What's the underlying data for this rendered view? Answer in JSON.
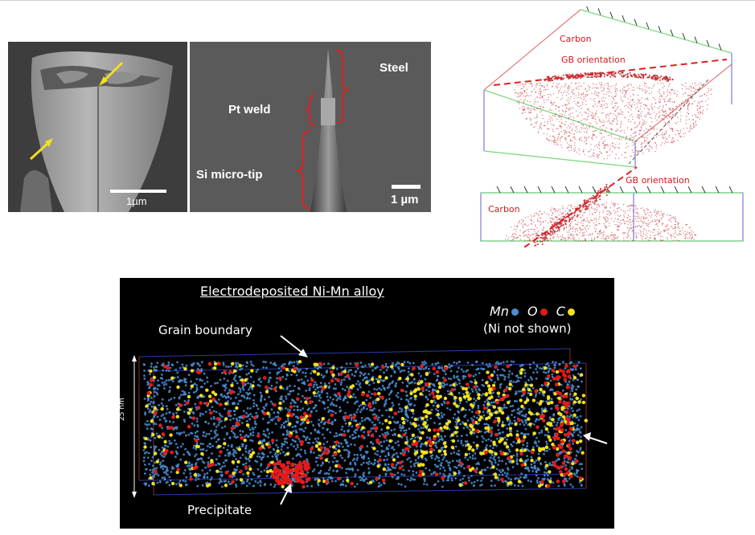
{
  "sem_left": {
    "scalebar": "1µm"
  },
  "sem_right": {
    "labels": {
      "steel": "Steel",
      "pt_weld": "Pt weld",
      "si_tip": "Si micro-tip"
    },
    "scalebar": "1 µm"
  },
  "apt_reconstruction": {
    "top": {
      "element_label": "Carbon",
      "gb_label": "GB orientation"
    },
    "bottom": {
      "element_label": "Carbon",
      "gb_label": "GB orientation"
    }
  },
  "nimn_panel": {
    "title": "Electrodeposited Ni-Mn alloy",
    "legend": {
      "items": [
        {
          "element": "Mn",
          "color": "#4a8fd6"
        },
        {
          "element": "O",
          "color": "#e21b1b"
        },
        {
          "element": "C",
          "color": "#f2e01c"
        }
      ],
      "note": "(Ni not shown)"
    },
    "grain_boundary_label": "Grain boundary",
    "precipitate_label": "Precipitate",
    "scale_label": "25 nm"
  },
  "colors": {
    "mn": "#4a8fd6",
    "o": "#e21b1b",
    "c": "#f2e01c",
    "apt_dots": "#c0262b"
  }
}
